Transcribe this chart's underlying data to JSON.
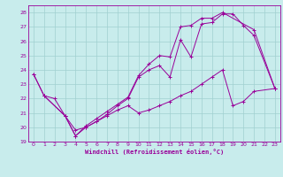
{
  "xlabel": "Windchill (Refroidissement éolien,°C)",
  "background_color": "#c8ecec",
  "grid_color": "#a0d0d0",
  "line_color": "#990099",
  "xlim": [
    -0.5,
    23.5
  ],
  "ylim": [
    19,
    28.5
  ],
  "xticks": [
    0,
    1,
    2,
    3,
    4,
    5,
    6,
    7,
    8,
    9,
    10,
    11,
    12,
    13,
    14,
    15,
    16,
    17,
    18,
    19,
    20,
    21,
    22,
    23
  ],
  "yticks": [
    19,
    20,
    21,
    22,
    23,
    24,
    25,
    26,
    27,
    28
  ],
  "line1_x": [
    0,
    1,
    2,
    3,
    4,
    5,
    6,
    7,
    8,
    9,
    10,
    11,
    12,
    13,
    14,
    15,
    16,
    17,
    18,
    19,
    20,
    21,
    23
  ],
  "line1_y": [
    23.7,
    22.2,
    22.0,
    20.8,
    19.8,
    20.0,
    20.4,
    20.9,
    21.5,
    22.0,
    23.5,
    24.0,
    24.3,
    23.5,
    26.1,
    24.9,
    27.2,
    27.3,
    27.9,
    27.9,
    27.1,
    26.4,
    22.7
  ],
  "line2_x": [
    0,
    1,
    3,
    4,
    5,
    6,
    7,
    8,
    9,
    10,
    11,
    12,
    13,
    14,
    15,
    16,
    17,
    18,
    21,
    23
  ],
  "line2_y": [
    23.7,
    22.2,
    20.8,
    19.4,
    20.1,
    20.6,
    21.1,
    21.6,
    22.1,
    23.6,
    24.4,
    25.0,
    24.9,
    27.0,
    27.1,
    27.6,
    27.6,
    28.0,
    26.8,
    22.7
  ],
  "line3_x": [
    1,
    3,
    4,
    5,
    6,
    7,
    8,
    9,
    10,
    11,
    12,
    13,
    14,
    15,
    16,
    17,
    18,
    19,
    20,
    21,
    23
  ],
  "line3_y": [
    22.2,
    20.8,
    19.4,
    20.0,
    20.4,
    20.8,
    21.2,
    21.5,
    21.0,
    21.2,
    21.5,
    21.8,
    22.2,
    22.5,
    23.0,
    23.5,
    24.0,
    21.5,
    21.8,
    22.5,
    22.7
  ]
}
